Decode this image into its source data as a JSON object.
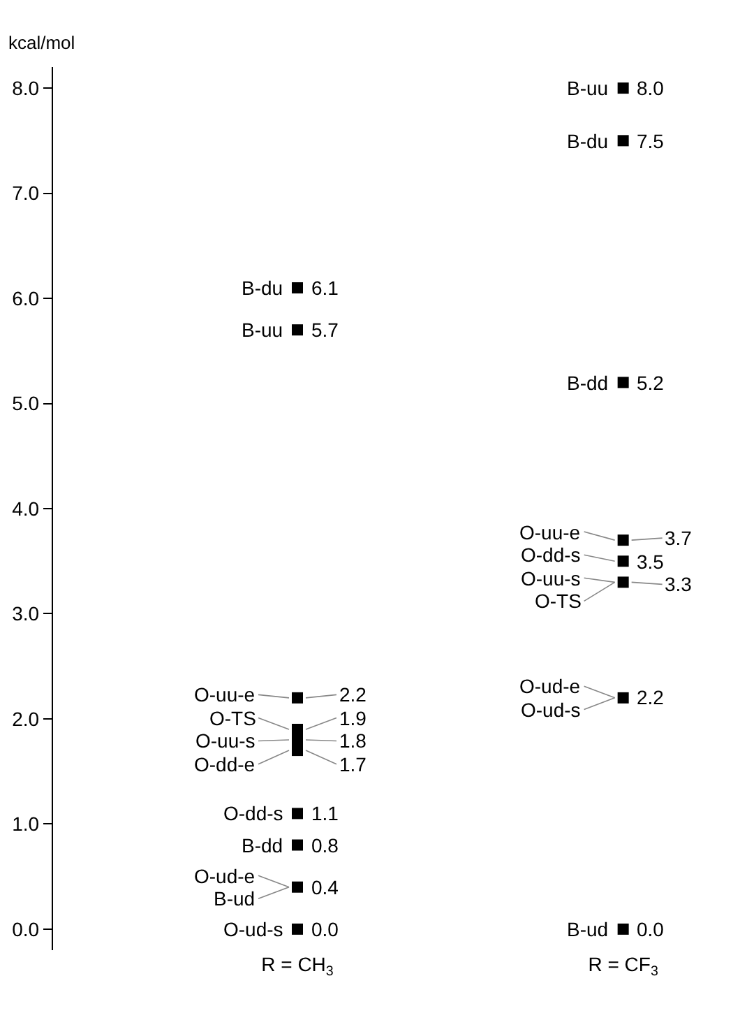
{
  "chart_data": {
    "type": "scatter",
    "ylabel": "kcal/mol",
    "categories": [
      "R = CH$_{3}$",
      "R = CF$_{3}$"
    ],
    "series": [
      {
        "x": [
          "R = CH$_{3}$",
          "R = CH$_{3}$",
          "R = CH$_{3}$",
          "R = CH$_{3}$",
          "R = CH$_{3}$",
          "R = CH$_{3}$",
          "R = CH$_{3}$",
          "R = CH$_{3}$",
          "R = CH$_{3}$",
          "R = CH$_{3}$"
        ],
        "values": [
          6.1,
          5.7,
          2.2,
          1.9,
          1.8,
          1.7,
          1.1,
          0.8,
          0.4,
          0.0
        ],
        "value_labels": [
          "6.1",
          "5.7",
          "2.2",
          "1.9",
          "1.8",
          "1.7",
          "1.1",
          "0.8",
          "0.4",
          "0.0"
        ],
        "color": "#000000"
      },
      {
        "x": [
          "R = CF$_{3}$",
          "R = CF$_{3}$",
          "R = CF$_{3}$",
          "R = CF$_{3}$",
          "R = CF$_{3}$",
          "R = CF$_{3}$",
          "R = CF$_{3}$",
          "R = CF$_{3}$"
        ],
        "values": [
          8.0,
          7.5,
          5.2,
          3.7,
          3.5,
          3.3,
          2.2,
          0.0
        ],
        "value_labels": [
          "8.0",
          "7.5",
          "5.2",
          "3.7",
          "3.5",
          "3.3",
          "2.2",
          "0.0"
        ],
        "color": "#000000"
      }
    ],
    "annotations": [
      {
        "text": "B-du",
        "x": "R = CH$_{3}$",
        "y": 6.1
      },
      {
        "text": "B-uu",
        "x": "R = CH$_{3}$",
        "y": 5.7
      },
      {
        "text": "O-uu-e",
        "x": "R = CH$_{3}$",
        "y": 2.2
      },
      {
        "text": "O-TS",
        "x": "R = CH$_{3}$",
        "y": 1.9
      },
      {
        "text": "O-uu-s",
        "x": "R = CH$_{3}$",
        "y": 1.8
      },
      {
        "text": "O-dd-e",
        "x": "R = CH$_{3}$",
        "y": 1.7
      },
      {
        "text": "O-dd-s",
        "x": "R = CH$_{3}$",
        "y": 1.1
      },
      {
        "text": "B-dd",
        "x": "R = CH$_{3}$",
        "y": 0.8
      },
      {
        "text": "O-ud-e",
        "x": "R = CH$_{3}$",
        "y": 0.4
      },
      {
        "text": "B-ud",
        "x": "R = CH$_{3}$",
        "y": 0.4
      },
      {
        "text": "O-ud-s",
        "x": "R = CH$_{3}$",
        "y": 0.0
      },
      {
        "text": "B-uu",
        "x": "R = CF$_{3}$",
        "y": 8.0
      },
      {
        "text": "B-du",
        "x": "R = CF$_{3}$",
        "y": 7.5
      },
      {
        "text": "B-dd",
        "x": "R = CF$_{3}$",
        "y": 5.2
      },
      {
        "text": "O-uu-e",
        "x": "R = CF$_{3}$",
        "y": 3.7
      },
      {
        "text": "O-dd-s",
        "x": "R = CF$_{3}$",
        "y": 3.5
      },
      {
        "text": "O-uu-s",
        "x": "R = CF$_{3}$",
        "y": 3.3
      },
      {
        "text": "O-TS",
        "x": "R = CF$_{3}$",
        "y": 3.3
      },
      {
        "text": "O-ud-e",
        "x": "R = CF$_{3}$",
        "y": 2.2
      },
      {
        "text": "O-ud-s",
        "x": "R = CF$_{3}$",
        "y": 2.2
      },
      {
        "text": "B-ud",
        "x": "R = CF$_{3}$",
        "y": 0.0
      }
    ],
    "ylim": [
      -0.2,
      8.2
    ],
    "yticks": [
      {
        "value": 0,
        "label": "0.0"
      },
      {
        "value": 1,
        "label": "1.0"
      },
      {
        "value": 2,
        "label": "2.0"
      },
      {
        "value": 3,
        "label": "3.0"
      },
      {
        "value": 4,
        "label": "4.0"
      },
      {
        "value": 5,
        "label": "5.0"
      },
      {
        "value": 6,
        "label": "6.0"
      },
      {
        "value": 7,
        "label": "7.0"
      },
      {
        "value": 8,
        "label": "8.0"
      }
    ],
    "marker": "square"
  }
}
